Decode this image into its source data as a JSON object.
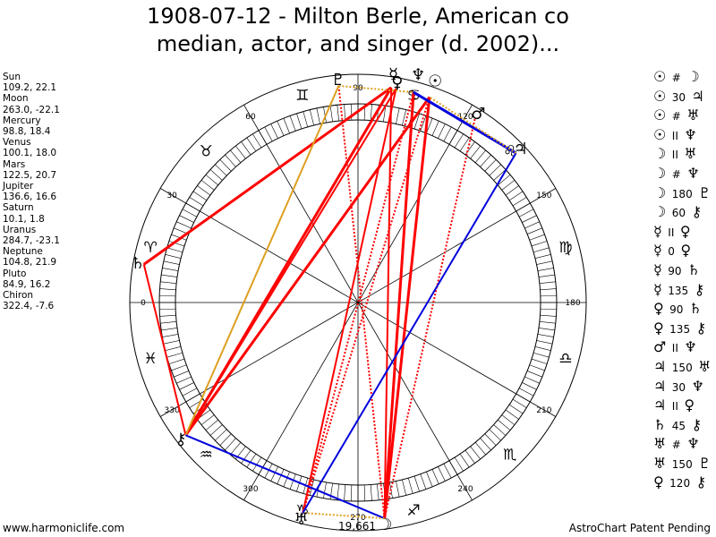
{
  "title_line1": "1908-07-12 - Milton Berle, American co",
  "title_line2": "median, actor, and singer (d. 2002)...",
  "planets": [
    {
      "name": "Sun",
      "coords": "109.2, 22.1",
      "glyph": "☉",
      "lon": 109.2
    },
    {
      "name": "Moon",
      "coords": "263.0, -22.1",
      "glyph": "☽",
      "lon": 263.0
    },
    {
      "name": "Mercury",
      "coords": "98.8, 18.4",
      "glyph": "☿",
      "lon": 98.8
    },
    {
      "name": "Venus",
      "coords": "100.1, 18.0",
      "glyph": "♀",
      "lon": 100.1
    },
    {
      "name": "Mars",
      "coords": "122.5, 20.7",
      "glyph": "♂",
      "lon": 122.5
    },
    {
      "name": "Jupiter",
      "coords": "136.6, 16.6",
      "glyph": "♃",
      "lon": 136.6
    },
    {
      "name": "Saturn",
      "coords": "10.1, 1.8",
      "glyph": "♄",
      "lon": 10.1
    },
    {
      "name": "Uranus",
      "coords": "284.7, -23.1",
      "glyph": "♅",
      "lon": 284.7
    },
    {
      "name": "Neptune",
      "coords": "104.8, 21.9",
      "glyph": "♆",
      "lon": 104.8
    },
    {
      "name": "Pluto",
      "coords": "84.9, 16.2",
      "glyph": "♇",
      "lon": 84.9
    },
    {
      "name": "Chiron",
      "coords": "322.4, -7.6",
      "glyph": "⚷",
      "lon": 322.4
    }
  ],
  "aspect_list": [
    {
      "p1": "☉",
      "sym": "#",
      "p2": "☽"
    },
    {
      "p1": "☉",
      "sym": "30",
      "p2": "♃"
    },
    {
      "p1": "☉",
      "sym": "#",
      "p2": "♅"
    },
    {
      "p1": "☉",
      "sym": "II",
      "p2": "♆"
    },
    {
      "p1": "☽",
      "sym": "II",
      "p2": "♅"
    },
    {
      "p1": "☽",
      "sym": "#",
      "p2": "♆"
    },
    {
      "p1": "☽",
      "sym": "180",
      "p2": "♇"
    },
    {
      "p1": "☽",
      "sym": "60",
      "p2": "⚷"
    },
    {
      "p1": "☿",
      "sym": "II",
      "p2": "♀"
    },
    {
      "p1": "☿",
      "sym": "0",
      "p2": "♀"
    },
    {
      "p1": "☿",
      "sym": "90",
      "p2": "♄"
    },
    {
      "p1": "☿",
      "sym": "135",
      "p2": "⚷"
    },
    {
      "p1": "♀",
      "sym": "90",
      "p2": "♄"
    },
    {
      "p1": "♀",
      "sym": "135",
      "p2": "⚷"
    },
    {
      "p1": "♂",
      "sym": "II",
      "p2": "♆"
    },
    {
      "p1": "♃",
      "sym": "150",
      "p2": "♅"
    },
    {
      "p1": "♃",
      "sym": "30",
      "p2": "♆"
    },
    {
      "p1": "♃",
      "sym": "II",
      "p2": "♀"
    },
    {
      "p1": "♄",
      "sym": "45",
      "p2": "⚷"
    },
    {
      "p1": "♅",
      "sym": "#",
      "p2": "♆"
    },
    {
      "p1": "♅",
      "sym": "150",
      "p2": "♇"
    },
    {
      "p1": "♀",
      "sym": "120",
      "p2": "⚷"
    }
  ],
  "degree_labels": [
    "0",
    "30",
    "60",
    "90",
    "120",
    "150",
    "180",
    "210",
    "240",
    "270",
    "300",
    "330"
  ],
  "zodiac_signs": [
    "♈",
    "♉",
    "♊",
    "♋",
    "♌",
    "♍",
    "♎",
    "♏",
    "♐",
    "♑",
    "♒",
    "♓"
  ],
  "chart_lines": [
    {
      "a": "Sun",
      "b": "Moon",
      "color": "#ff0000",
      "width": 3,
      "dash": false
    },
    {
      "a": "Neptune",
      "b": "Moon",
      "color": "#ff0000",
      "width": 3,
      "dash": false
    },
    {
      "a": "Mercury",
      "b": "Moon",
      "color": "#ff0000",
      "width": 2,
      "dash": false
    },
    {
      "a": "Venus",
      "b": "Uranus",
      "color": "#ff0000",
      "width": 2,
      "dash": false
    },
    {
      "a": "Sun",
      "b": "Uranus",
      "color": "#ff0000",
      "width": 2,
      "dash": true
    },
    {
      "a": "Neptune",
      "b": "Uranus",
      "color": "#ff0000",
      "width": 2,
      "dash": true
    },
    {
      "a": "Mars",
      "b": "Moon",
      "color": "#ff0000",
      "width": 2,
      "dash": true
    },
    {
      "a": "Pluto",
      "b": "Moon",
      "color": "#ff0000",
      "width": 2,
      "dash": true
    },
    {
      "a": "Sun",
      "b": "Chiron",
      "color": "#ff0000",
      "width": 3,
      "dash": false
    },
    {
      "a": "Mercury",
      "b": "Chiron",
      "color": "#ff0000",
      "width": 3,
      "dash": false
    },
    {
      "a": "Venus",
      "b": "Chiron",
      "color": "#ff0000",
      "width": 2,
      "dash": false
    },
    {
      "a": "Mercury",
      "b": "Saturn",
      "color": "#ff0000",
      "width": 3,
      "dash": false
    },
    {
      "a": "Saturn",
      "b": "Chiron",
      "color": "#ff0000",
      "width": 2,
      "dash": false
    },
    {
      "a": "Pluto",
      "b": "Chiron",
      "color": "#dda020",
      "width": 2,
      "dash": false
    },
    {
      "a": "Jupiter",
      "b": "Uranus",
      "color": "#0000dd",
      "width": 2,
      "dash": false
    },
    {
      "a": "Jupiter",
      "b": "Neptune",
      "color": "#0000dd",
      "width": 3,
      "dash": false
    },
    {
      "a": "Jupiter",
      "b": "Sun",
      "color": "#dda020",
      "width": 2,
      "dash": true
    },
    {
      "a": "Moon",
      "b": "Chiron",
      "color": "#0000dd",
      "width": 2,
      "dash": false
    },
    {
      "a": "Pluto",
      "b": "Neptune",
      "color": "#dda020",
      "width": 2,
      "dash": true
    },
    {
      "a": "Moon",
      "b": "Uranus",
      "color": "#dda020",
      "width": 2,
      "dash": true
    }
  ],
  "bottom_number": "19,661",
  "footer_left": "www.harmoniclife.com",
  "footer_right": "AstroChart Patent Pending"
}
